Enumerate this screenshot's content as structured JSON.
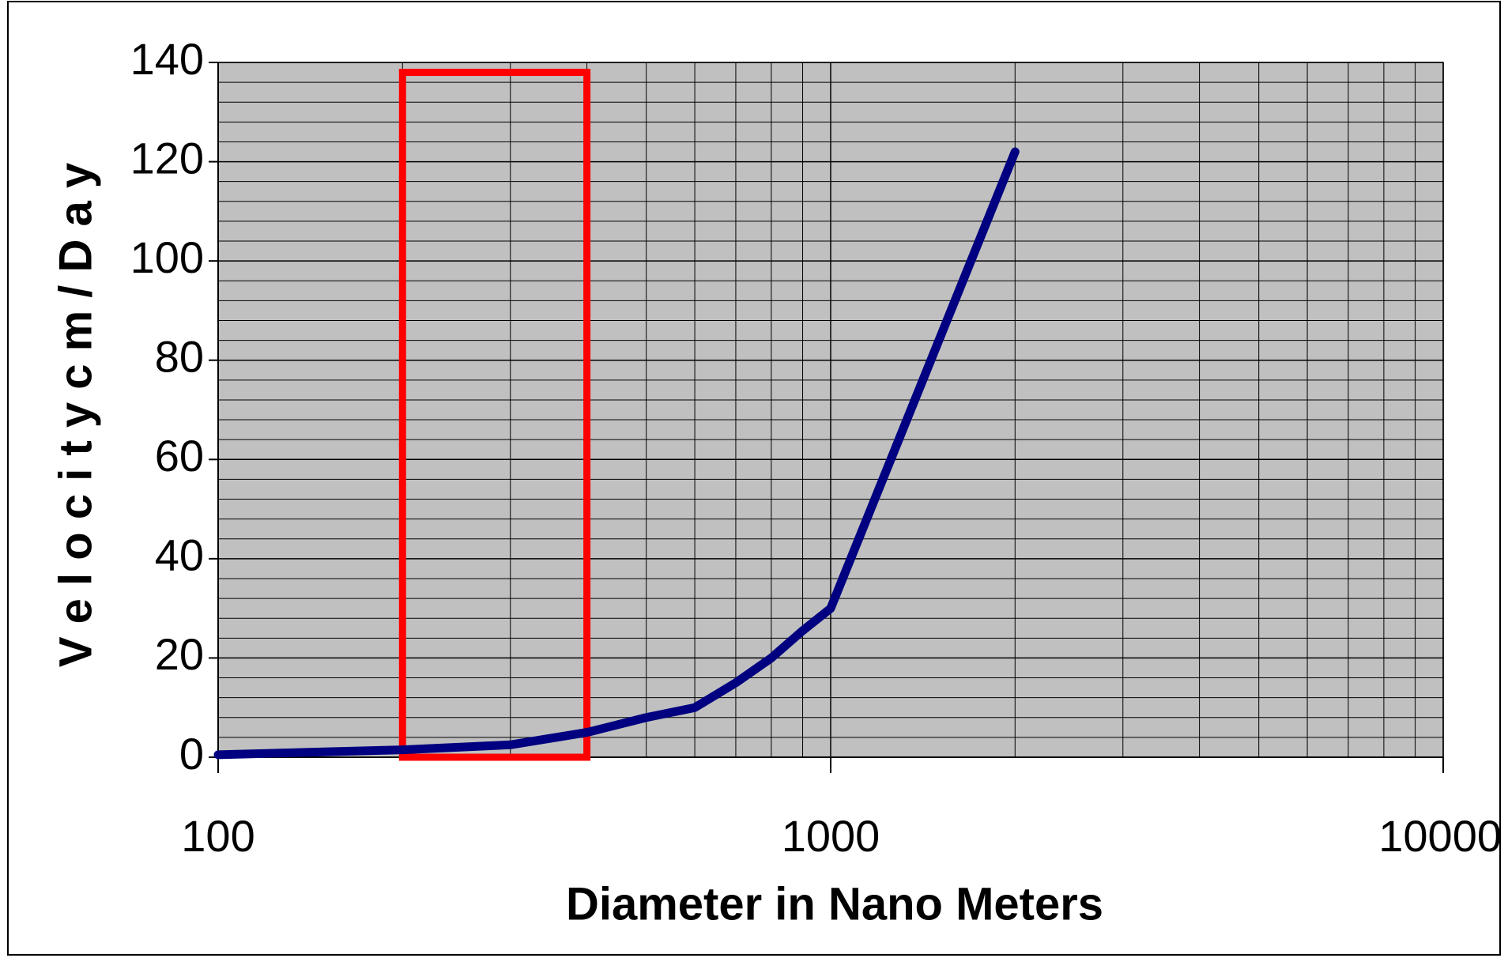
{
  "chart_data": {
    "type": "line",
    "x_label": "Diameter in Nano Meters",
    "y_label": "V e l o c i t y  c m / D a y",
    "x": [
      100,
      200,
      300,
      400,
      500,
      600,
      700,
      800,
      900,
      1000,
      2000
    ],
    "series": [
      {
        "color": "#000080",
        "values": [
          0.5,
          1.5,
          2.5,
          5,
          8,
          10,
          15,
          20,
          25.5,
          30,
          122
        ]
      }
    ],
    "xlim": [
      100,
      10000
    ],
    "xticks": [
      100,
      1000,
      10000
    ],
    "xlog": true,
    "xminorticks": [
      200,
      300,
      400,
      500,
      600,
      700,
      800,
      900,
      2000,
      3000,
      4000,
      5000,
      6000,
      7000,
      8000,
      9000
    ],
    "ylim": [
      0,
      140
    ],
    "yticks": [
      0,
      20,
      40,
      60,
      80,
      100,
      120,
      140
    ],
    "yminorticks": [
      4,
      8,
      12,
      16,
      24,
      28,
      32,
      36,
      44,
      48,
      52,
      56,
      64,
      68,
      72,
      76,
      84,
      88,
      92,
      96,
      104,
      108,
      112,
      116,
      124,
      128,
      132,
      136
    ],
    "grid": true,
    "plot_background": "#c0c0c0",
    "highlight": {
      "x": [
        200,
        400
      ],
      "y": [
        0,
        138
      ],
      "color": "#ff0000"
    }
  }
}
